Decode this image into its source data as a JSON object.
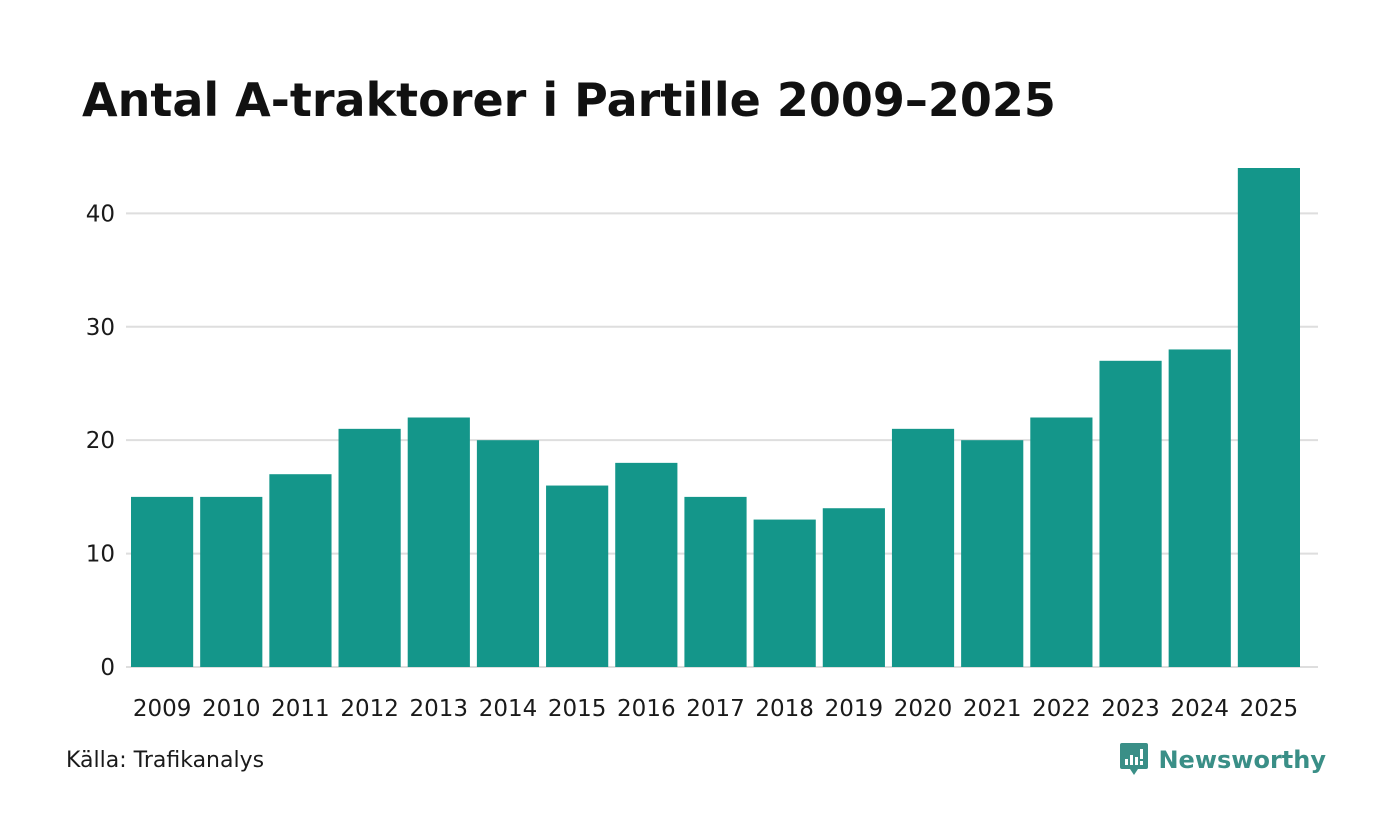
{
  "chart_data": {
    "type": "bar",
    "title": "Antal A-traktorer i Partille 2009–2025",
    "categories": [
      "2009",
      "2010",
      "2011",
      "2012",
      "2013",
      "2014",
      "2015",
      "2016",
      "2017",
      "2018",
      "2019",
      "2020",
      "2021",
      "2022",
      "2023",
      "2024",
      "2025"
    ],
    "values": [
      15,
      15,
      17,
      21,
      22,
      20,
      16,
      18,
      15,
      13,
      14,
      21,
      20,
      22,
      27,
      28,
      44
    ],
    "ylim": [
      0,
      44
    ],
    "yticks": [
      0,
      10,
      20,
      30,
      40
    ],
    "ytick_labels": [
      "0",
      "10",
      "20",
      "30",
      "40"
    ],
    "grid": true,
    "bar_color": "#14968a"
  },
  "footer": {
    "source": "Källa: Trafikanalys",
    "brand_name": "Newsworthy",
    "brand_icon": "newsworthy-logo-icon",
    "brand_color": "#3a8f87"
  }
}
